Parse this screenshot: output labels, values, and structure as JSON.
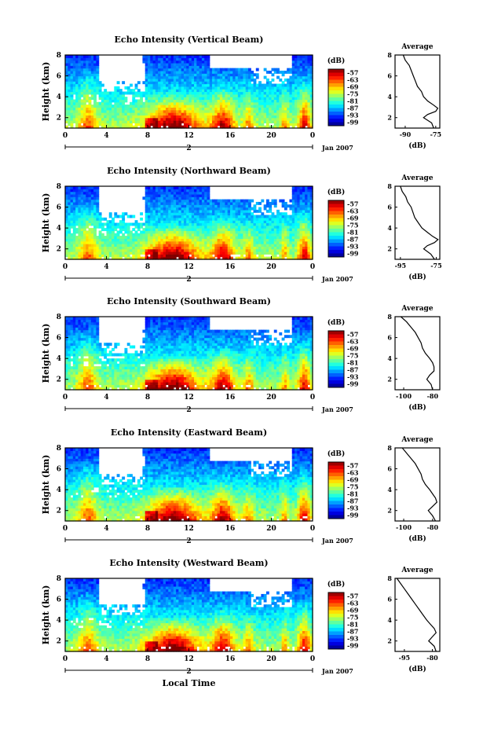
{
  "figure": {
    "date_label": "Jan 2007",
    "day_label": "2",
    "x_axis_label": "Local Time",
    "colorbar_unit": "(dB)",
    "avg_title": "Average",
    "avg_xlabel": "(dB)"
  },
  "chart_data": [
    {
      "type": "heatmap",
      "title": "Echo Intensity (Vertical Beam)",
      "xlabel": "",
      "ylabel": "Height (km)",
      "x_ticks": [
        "0",
        "4",
        "8",
        "12",
        "16",
        "20",
        "0"
      ],
      "y_ticks": [
        "2",
        "4",
        "6",
        "8"
      ],
      "xlim": [
        0,
        24
      ],
      "ylim": [
        1.0,
        8.0
      ],
      "colorbar_ticks": [
        "-57",
        "-63",
        "-69",
        "-75",
        "-81",
        "-87",
        "-93",
        "-99"
      ],
      "colorbar_range": [
        -102,
        -54
      ],
      "avg_profile": {
        "x_ticks": [
          "-90",
          "-75"
        ],
        "xlim": [
          -95,
          -73
        ],
        "y_ticks": [
          "2",
          "4",
          "6",
          "8"
        ],
        "height": [
          1.0,
          1.5,
          2.0,
          2.3,
          2.6,
          2.9,
          3.2,
          3.6,
          4.0,
          4.5,
          5.0,
          5.5,
          6.0,
          6.5,
          7.0,
          7.5,
          8.0
        ],
        "db": [
          -76,
          -77,
          -81,
          -79,
          -75,
          -74,
          -76,
          -79,
          -81,
          -82,
          -84,
          -85,
          -86,
          -87,
          -88,
          -90,
          -91
        ]
      }
    },
    {
      "type": "heatmap",
      "title": "Echo Intensity (Northward Beam)",
      "xlabel": "",
      "ylabel": "Height (km)",
      "x_ticks": [
        "0",
        "4",
        "8",
        "12",
        "16",
        "20",
        "0"
      ],
      "y_ticks": [
        "2",
        "4",
        "6",
        "8"
      ],
      "xlim": [
        0,
        24
      ],
      "ylim": [
        1.0,
        8.0
      ],
      "colorbar_ticks": [
        "-57",
        "-63",
        "-69",
        "-75",
        "-81",
        "-87",
        "-93",
        "-99"
      ],
      "colorbar_range": [
        -102,
        -54
      ],
      "avg_profile": {
        "x_ticks": [
          "-95",
          "-75"
        ],
        "xlim": [
          -98,
          -73
        ],
        "y_ticks": [
          "2",
          "4",
          "6",
          "8"
        ],
        "height": [
          1.0,
          1.5,
          2.0,
          2.3,
          2.6,
          2.9,
          3.2,
          3.6,
          4.0,
          4.5,
          5.0,
          5.5,
          6.0,
          6.5,
          7.0,
          7.5,
          8.0
        ],
        "db": [
          -76,
          -78,
          -82,
          -80,
          -76,
          -74,
          -77,
          -80,
          -83,
          -85,
          -87,
          -88,
          -89,
          -91,
          -92,
          -94,
          -95
        ]
      }
    },
    {
      "type": "heatmap",
      "title": "Echo Intensity (Southward Beam)",
      "xlabel": "",
      "ylabel": "Height (km)",
      "x_ticks": [
        "0",
        "4",
        "8",
        "12",
        "16",
        "20",
        "0"
      ],
      "y_ticks": [
        "2",
        "4",
        "6",
        "8"
      ],
      "xlim": [
        0,
        24
      ],
      "ylim": [
        1.0,
        8.0
      ],
      "colorbar_ticks": [
        "-57",
        "-63",
        "-69",
        "-75",
        "-81",
        "-87",
        "-93",
        "-99"
      ],
      "colorbar_range": [
        -102,
        -54
      ],
      "avg_profile": {
        "x_ticks": [
          "-100",
          "-80"
        ],
        "xlim": [
          -106,
          -75
        ],
        "y_ticks": [
          "2",
          "4",
          "6",
          "8"
        ],
        "height": [
          1.0,
          1.5,
          2.0,
          2.4,
          2.8,
          3.2,
          3.6,
          4.0,
          4.5,
          5.0,
          5.5,
          6.0,
          6.5,
          7.0,
          7.5,
          8.0
        ],
        "db": [
          -80,
          -81,
          -84,
          -82,
          -79,
          -79,
          -80,
          -82,
          -85,
          -87,
          -88,
          -90,
          -92,
          -95,
          -98,
          -102
        ]
      }
    },
    {
      "type": "heatmap",
      "title": "Echo Intensity (Eastward Beam)",
      "xlabel": "",
      "ylabel": "Height (km)",
      "x_ticks": [
        "0",
        "4",
        "8",
        "12",
        "16",
        "20",
        "0"
      ],
      "y_ticks": [
        "2",
        "4",
        "6",
        "8"
      ],
      "xlim": [
        0,
        24
      ],
      "ylim": [
        1.0,
        8.0
      ],
      "colorbar_ticks": [
        "-57",
        "-63",
        "-69",
        "-75",
        "-81",
        "-87",
        "-93",
        "-99"
      ],
      "colorbar_range": [
        -102,
        -54
      ],
      "avg_profile": {
        "x_ticks": [
          "-100",
          "-80"
        ],
        "xlim": [
          -106,
          -75
        ],
        "y_ticks": [
          "2",
          "4",
          "6",
          "8"
        ],
        "height": [
          1.0,
          1.5,
          2.0,
          2.4,
          2.8,
          3.2,
          3.6,
          4.0,
          4.5,
          5.0,
          5.5,
          6.0,
          6.5,
          7.0,
          7.5,
          8.0
        ],
        "db": [
          -78,
          -80,
          -83,
          -80,
          -77,
          -78,
          -80,
          -82,
          -85,
          -87,
          -88,
          -90,
          -92,
          -95,
          -98,
          -101
        ]
      }
    },
    {
      "type": "heatmap",
      "title": "Echo Intensity (Westward Beam)",
      "xlabel": "Local Time",
      "ylabel": "Height (km)",
      "x_ticks": [
        "0",
        "4",
        "8",
        "12",
        "16",
        "20",
        "0"
      ],
      "y_ticks": [
        "2",
        "4",
        "6",
        "8"
      ],
      "xlim": [
        0,
        24
      ],
      "ylim": [
        1.0,
        8.0
      ],
      "colorbar_ticks": [
        "-57",
        "-63",
        "-69",
        "-75",
        "-81",
        "-87",
        "-93",
        "-99"
      ],
      "colorbar_range": [
        -102,
        -54
      ],
      "avg_profile": {
        "x_ticks": [
          "-95",
          "-80"
        ],
        "xlim": [
          -100,
          -76
        ],
        "y_ticks": [
          "2",
          "4",
          "6",
          "8"
        ],
        "height": [
          1.0,
          1.5,
          2.0,
          2.4,
          2.8,
          3.2,
          3.6,
          4.0,
          4.5,
          5.0,
          5.5,
          6.0,
          6.5,
          7.0,
          7.5,
          8.0
        ],
        "db": [
          -78,
          -79,
          -82,
          -80,
          -78,
          -79,
          -81,
          -83,
          -85,
          -87,
          -89,
          -91,
          -93,
          -95,
          -97,
          -99
        ]
      }
    }
  ]
}
